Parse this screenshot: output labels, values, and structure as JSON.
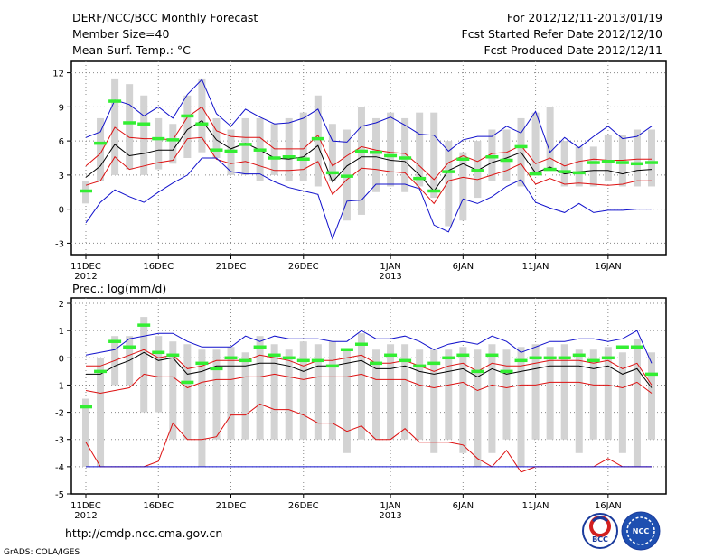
{
  "header": {
    "title": "DERF/NCC/BCC Monthly Forecast",
    "member_size": "Member Size=40",
    "variable": "Mean Surf. Temp.: °C",
    "period": "For 2012/12/11-2013/01/19",
    "fcst_started": "Fcst Started Refer Date 2012/12/10",
    "fcst_produced": "Fcst Produced Date 2012/12/11"
  },
  "panel2_label": "Prec.: log(mm/d)",
  "footer": {
    "url": "http://cmdp.ncc.cma.gov.cn",
    "credit": "GrADS: COLA/IGES",
    "logo_left": "BCC",
    "logo_right": "NCC"
  },
  "colors": {
    "box": "#d3d3d3",
    "green": "#33ee33",
    "red": "#dd1111",
    "blue": "#1111cc",
    "black": "#000000"
  },
  "chart_data": [
    {
      "type": "line",
      "title": "Mean Surf. Temp.: °C",
      "x": [
        1,
        2,
        3,
        4,
        5,
        6,
        7,
        8,
        9,
        10,
        11,
        12,
        13,
        14,
        15,
        16,
        17,
        18,
        19,
        20,
        21,
        22,
        23,
        24,
        25,
        26,
        27,
        28,
        29,
        30,
        31,
        32,
        33,
        34,
        35,
        36,
        37,
        38,
        39,
        40
      ],
      "x_tick_labels": [
        {
          "x": 1,
          "label": "11DEC",
          "sub": "2012"
        },
        {
          "x": 6,
          "label": "16DEC",
          "sub": ""
        },
        {
          "x": 11,
          "label": "21DEC",
          "sub": ""
        },
        {
          "x": 16,
          "label": "26DEC",
          "sub": ""
        },
        {
          "x": 22,
          "label": "1JAN",
          "sub": "2013"
        },
        {
          "x": 27,
          "label": "6JAN",
          "sub": ""
        },
        {
          "x": 32,
          "label": "11JAN",
          "sub": ""
        },
        {
          "x": 37,
          "label": "16JAN",
          "sub": ""
        }
      ],
      "ylim": [
        -4,
        13
      ],
      "yticks": [
        -3,
        0,
        3,
        6,
        9,
        12
      ],
      "box_low": [
        0.5,
        2.5,
        3,
        3.5,
        3,
        3.5,
        4,
        4.5,
        5,
        4.5,
        3,
        3,
        2.5,
        3,
        2.5,
        2.5,
        2,
        2.5,
        -1,
        -0.5,
        1.5,
        2,
        1.5,
        2,
        1,
        -1.5,
        -1,
        1,
        2.5,
        2.5,
        2,
        3,
        3.5,
        2,
        2,
        2,
        2.5,
        2,
        2,
        2
      ],
      "box_high": [
        2.5,
        8,
        11.5,
        11,
        10,
        8,
        7.5,
        10,
        11.5,
        8,
        7,
        8,
        8,
        7.5,
        8,
        8.5,
        10,
        7.5,
        7,
        9,
        8,
        8.5,
        8,
        8.5,
        8.5,
        6,
        5,
        6,
        7,
        7,
        8,
        8.5,
        9,
        6,
        5.5,
        5.5,
        6.5,
        6.5,
        7,
        7
      ],
      "ensemble_mode": [
        1.6,
        5.8,
        9.5,
        7.6,
        7.5,
        6.2,
        6.1,
        8.2,
        7.5,
        5.2,
        5.1,
        5.7,
        5.2,
        4.5,
        4.6,
        4.4,
        6.2,
        3.2,
        2.9,
        5.1,
        5,
        4.7,
        4.5,
        2.7,
        1.6,
        3.3,
        4.4,
        3.4,
        4.6,
        4.3,
        5.5,
        3.1,
        3.5,
        3.3,
        3.2,
        4.1,
        4.2,
        4.1,
        4,
        4.1
      ],
      "series": [
        {
          "name": "max",
          "color": "blue",
          "values": [
            6.3,
            6.8,
            9.6,
            9.2,
            8.2,
            9,
            8,
            10.1,
            11.4,
            8.4,
            7.3,
            8.8,
            8.1,
            7.5,
            7.6,
            8,
            8.8,
            6,
            5.9,
            7.3,
            7.6,
            8.1,
            7.4,
            6.6,
            6.5,
            5.1,
            6.1,
            6.4,
            6.4,
            7.3,
            6.7,
            8.6,
            5,
            6.3,
            5.4,
            6.4,
            7.3,
            6.2,
            6.4,
            7.3
          ]
        },
        {
          "name": "upper",
          "color": "red",
          "values": [
            3.8,
            4.9,
            7.2,
            6.3,
            6.2,
            6.2,
            6.1,
            8.1,
            9,
            6.9,
            6.4,
            6.3,
            6.3,
            5.3,
            5.3,
            5.3,
            6.5,
            3.8,
            4.7,
            5.5,
            5.2,
            5,
            4.9,
            3.8,
            2.6,
            4.1,
            4.7,
            4.2,
            4.9,
            5,
            5.6,
            4,
            4.5,
            3.8,
            4.2,
            4.4,
            4.3,
            4.3,
            4.4,
            4.4
          ]
        },
        {
          "name": "mean",
          "color": "black",
          "values": [
            2.8,
            3.8,
            5.7,
            4.7,
            4.9,
            5.2,
            5.2,
            7,
            7.8,
            6.1,
            5.3,
            5.8,
            5.2,
            4.5,
            4.4,
            4.6,
            5.6,
            2.4,
            3.8,
            4.6,
            4.6,
            4.3,
            4.2,
            3,
            1.6,
            3.4,
            4,
            3.4,
            4.1,
            4.5,
            5,
            3.2,
            3.7,
            3.1,
            3.3,
            3.4,
            3.4,
            3.1,
            3.4,
            3.5
          ]
        },
        {
          "name": "lower",
          "color": "red",
          "values": [
            2.1,
            2.5,
            4.6,
            3.5,
            3.8,
            4.1,
            4.3,
            6.2,
            6.3,
            4.4,
            4,
            4.2,
            3.8,
            3.4,
            3.4,
            3.5,
            4.2,
            1.3,
            2.6,
            3.6,
            3.5,
            3.3,
            3.2,
            1.9,
            0.5,
            2.5,
            2.8,
            2.6,
            3,
            3.4,
            4,
            2.2,
            2.7,
            2.2,
            2.3,
            2.2,
            2.1,
            2.2,
            2.5,
            2.5
          ]
        },
        {
          "name": "min",
          "color": "blue",
          "values": [
            -1.2,
            0.6,
            1.7,
            1.1,
            0.6,
            1.5,
            2.3,
            3,
            4.5,
            4.5,
            3.3,
            3.1,
            3.1,
            2.4,
            1.9,
            1.6,
            1.3,
            -2.6,
            0.7,
            0.8,
            2.2,
            2.2,
            2.2,
            1.8,
            -1.4,
            -2,
            0.9,
            0.5,
            1.1,
            2,
            2.6,
            0.6,
            0.1,
            -0.3,
            0.5,
            -0.3,
            -0.1,
            -0.1,
            0,
            0
          ]
        }
      ]
    },
    {
      "type": "line",
      "title": "Prec.: log(mm/d)",
      "x": [
        1,
        2,
        3,
        4,
        5,
        6,
        7,
        8,
        9,
        10,
        11,
        12,
        13,
        14,
        15,
        16,
        17,
        18,
        19,
        20,
        21,
        22,
        23,
        24,
        25,
        26,
        27,
        28,
        29,
        30,
        31,
        32,
        33,
        34,
        35,
        36,
        37,
        38,
        39,
        40
      ],
      "x_tick_labels": [
        {
          "x": 1,
          "label": "11DEC",
          "sub": "2012"
        },
        {
          "x": 6,
          "label": "16DEC",
          "sub": ""
        },
        {
          "x": 11,
          "label": "21DEC",
          "sub": ""
        },
        {
          "x": 16,
          "label": "26DEC",
          "sub": ""
        },
        {
          "x": 22,
          "label": "1JAN",
          "sub": "2013"
        },
        {
          "x": 27,
          "label": "6JAN",
          "sub": ""
        },
        {
          "x": 32,
          "label": "11JAN",
          "sub": ""
        },
        {
          "x": 37,
          "label": "16JAN",
          "sub": ""
        }
      ],
      "ylim": [
        -5,
        2.2
      ],
      "yticks": [
        -5,
        -4,
        -3,
        -2,
        -1,
        0,
        1,
        2
      ],
      "box_low": [
        -4,
        -4,
        -1,
        -1,
        -2,
        -2,
        -3,
        -3,
        -4,
        -3,
        -3,
        -3,
        -3,
        -3,
        -3,
        -3,
        -3,
        -3,
        -3.5,
        -3,
        -3,
        -3,
        -3,
        -3,
        -3.5,
        -3,
        -3.5,
        -4,
        -3.5,
        -3,
        -4,
        -3,
        -3,
        -3,
        -3.5,
        -3,
        -3,
        -3.5,
        -4,
        -3
      ],
      "box_high": [
        -1.5,
        0,
        0.8,
        0.8,
        1.5,
        0.8,
        0.6,
        0.5,
        0.3,
        0.3,
        0.4,
        0.2,
        0.8,
        0.5,
        0.3,
        0.6,
        0.5,
        0.6,
        0.3,
        0.9,
        0.3,
        0.5,
        0.5,
        0.3,
        0.3,
        0.3,
        0.4,
        0.3,
        0.5,
        0.3,
        0.4,
        0.5,
        0.4,
        0.5,
        0.3,
        0.3,
        0.4,
        0.2,
        0.7,
        0.2
      ],
      "ensemble_mode": [
        -1.8,
        -0.5,
        0.6,
        0.4,
        1.2,
        0.2,
        0.1,
        -0.9,
        -0.2,
        -0.4,
        0,
        -0.1,
        0.4,
        0.1,
        0,
        -0.1,
        -0.1,
        -0.3,
        0.3,
        0.5,
        -0.2,
        0.1,
        -0.1,
        -0.3,
        -0.2,
        0,
        0.1,
        -0.5,
        0.1,
        -0.5,
        -0.1,
        0,
        0,
        0,
        0.1,
        -0.1,
        0,
        0.4,
        0.4,
        -0.6
      ],
      "series": [
        {
          "name": "max",
          "color": "blue",
          "values": [
            0.1,
            0.2,
            0.3,
            0.7,
            0.8,
            0.9,
            0.9,
            0.6,
            0.4,
            0.4,
            0.4,
            0.8,
            0.6,
            0.8,
            0.7,
            0.7,
            0.7,
            0.6,
            0.6,
            1,
            0.7,
            0.7,
            0.8,
            0.6,
            0.3,
            0.5,
            0.6,
            0.5,
            0.8,
            0.6,
            0.2,
            0.4,
            0.6,
            0.6,
            0.7,
            0.7,
            0.6,
            0.7,
            1,
            -0.2
          ]
        },
        {
          "name": "upper",
          "color": "red",
          "values": [
            -0.3,
            -0.3,
            -0.1,
            0.1,
            0.3,
            0,
            0.1,
            -0.4,
            -0.3,
            -0.1,
            -0.1,
            -0.1,
            0.1,
            0,
            -0.1,
            -0.3,
            -0.1,
            -0.1,
            0,
            0.1,
            -0.2,
            -0.2,
            -0.1,
            -0.3,
            -0.5,
            -0.3,
            -0.2,
            -0.5,
            -0.2,
            -0.3,
            -0.3,
            -0.2,
            -0.1,
            -0.1,
            -0.1,
            -0.2,
            -0.1,
            -0.4,
            -0.2,
            -1
          ]
        },
        {
          "name": "mean",
          "color": "black",
          "values": [
            -0.6,
            -0.6,
            -0.3,
            -0.1,
            0.2,
            -0.1,
            0,
            -0.6,
            -0.5,
            -0.3,
            -0.3,
            -0.3,
            -0.2,
            -0.2,
            -0.3,
            -0.5,
            -0.3,
            -0.3,
            -0.2,
            -0.1,
            -0.4,
            -0.4,
            -0.3,
            -0.5,
            -0.6,
            -0.5,
            -0.4,
            -0.7,
            -0.4,
            -0.6,
            -0.5,
            -0.4,
            -0.3,
            -0.3,
            -0.3,
            -0.4,
            -0.3,
            -0.6,
            -0.4,
            -1.1
          ]
        },
        {
          "name": "lower",
          "color": "red",
          "values": [
            -1.2,
            -1.3,
            -1.2,
            -1.1,
            -0.6,
            -0.7,
            -0.7,
            -1.1,
            -0.9,
            -0.8,
            -0.8,
            -0.7,
            -0.7,
            -0.6,
            -0.7,
            -0.8,
            -0.7,
            -0.7,
            -0.7,
            -0.6,
            -0.8,
            -0.8,
            -0.8,
            -1,
            -1.1,
            -1,
            -0.9,
            -1.2,
            -1,
            -1.1,
            -1,
            -1,
            -0.9,
            -0.9,
            -0.9,
            -1,
            -1,
            -1.1,
            -0.9,
            -1.3
          ]
        },
        {
          "name": "min",
          "color": "red",
          "values": [
            -3.1,
            -4,
            -4,
            -4,
            -4,
            -3.8,
            -2.4,
            -3,
            -3,
            -2.9,
            -2.1,
            -2.1,
            -1.7,
            -1.9,
            -1.9,
            -2.1,
            -2.4,
            -2.4,
            -2.7,
            -2.5,
            -3,
            -3,
            -2.6,
            -3.1,
            -3.1,
            -3.1,
            -3.2,
            -3.7,
            -4,
            -3.4,
            -4.2,
            -4,
            -4,
            -4,
            -4,
            -4,
            -3.7,
            -4,
            -4,
            -4
          ]
        },
        {
          "name": "floor",
          "color": "blue",
          "values": [
            -4,
            -4,
            -4,
            -4,
            -4,
            -4,
            -4,
            -4,
            -4,
            -4,
            -4,
            -4,
            -4,
            -4,
            -4,
            -4,
            -4,
            -4,
            -4,
            -4,
            -4,
            -4,
            -4,
            -4,
            -4,
            -4,
            -4,
            -4,
            -4,
            -4,
            -4,
            -4,
            -4,
            -4,
            -4,
            -4,
            -4,
            -4,
            -4,
            -4
          ]
        }
      ]
    }
  ]
}
